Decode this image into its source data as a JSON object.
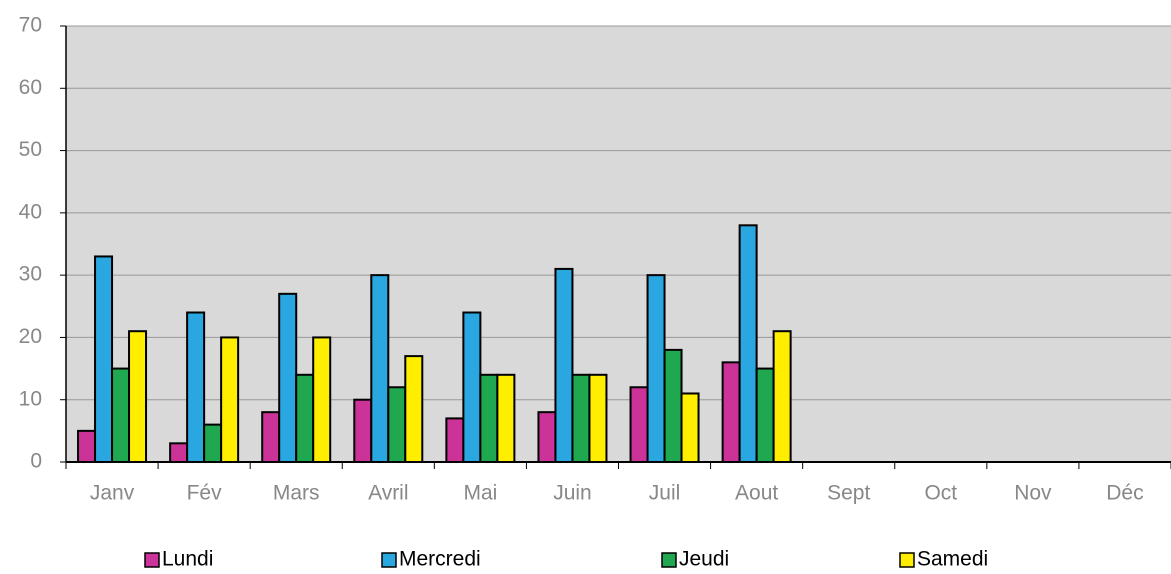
{
  "chart_data": {
    "type": "bar",
    "categories": [
      "Janv",
      "Fév",
      "Mars",
      "Avril",
      "Mai",
      "Juin",
      "Juil",
      "Aout",
      "Sept",
      "Oct",
      "Nov",
      "Déc"
    ],
    "series": [
      {
        "name": "Lundi",
        "color": "#cc3399",
        "values": [
          5,
          3,
          8,
          10,
          7,
          8,
          12,
          16,
          null,
          null,
          null,
          null
        ]
      },
      {
        "name": "Mercredi",
        "color": "#2aa7e0",
        "values": [
          33,
          24,
          27,
          30,
          24,
          31,
          30,
          38,
          null,
          null,
          null,
          null
        ]
      },
      {
        "name": "Jeudi",
        "color": "#1fa84f",
        "values": [
          15,
          6,
          14,
          12,
          14,
          14,
          18,
          15,
          null,
          null,
          null,
          null
        ]
      },
      {
        "name": "Samedi",
        "color": "#ffee00",
        "values": [
          21,
          20,
          20,
          17,
          14,
          14,
          11,
          21,
          null,
          null,
          null,
          null
        ]
      }
    ],
    "ylim": [
      0,
      70
    ],
    "yticks": [
      0,
      10,
      20,
      30,
      40,
      50,
      60,
      70
    ],
    "grid": true,
    "legend": "bottom"
  }
}
